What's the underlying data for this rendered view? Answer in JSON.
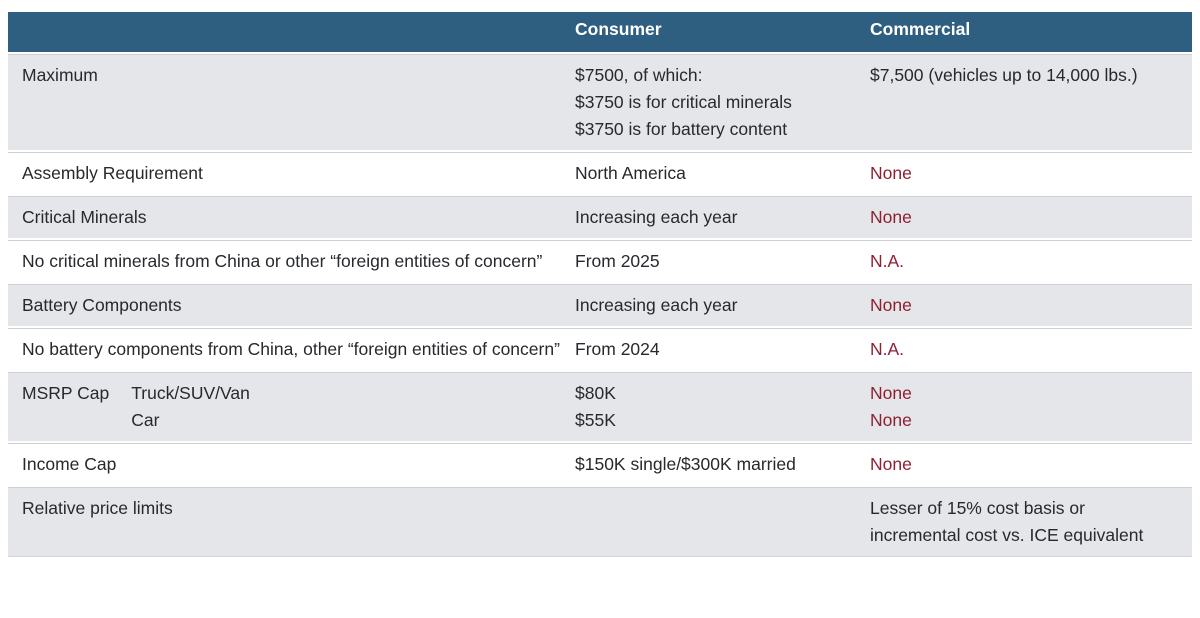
{
  "colors": {
    "header_bg": "#2e5e80",
    "header_text": "#ffffff",
    "stripe_bg": "#e4e6e9",
    "body_text": "#26292d",
    "negative_text": "#8e2033"
  },
  "header": {
    "col1": "",
    "consumer": "Consumer",
    "commercial": "Commercial"
  },
  "rows": [
    {
      "label": "Maximum",
      "consumer": [
        "$7500, of which:",
        "$3750 is for critical minerals",
        "$3750 is for battery content"
      ],
      "commercial": [
        "$7,500 (vehicles up to 14,000 lbs.)"
      ]
    },
    {
      "label": "Assembly Requirement",
      "consumer": [
        "North America"
      ],
      "commercial": [
        "None"
      ]
    },
    {
      "label": "Critical Minerals",
      "consumer": [
        "Increasing each year"
      ],
      "commercial": [
        "None"
      ]
    },
    {
      "label": "No critical minerals from China or other “foreign entities of concern”",
      "consumer": [
        "From 2025"
      ],
      "commercial": [
        "N.A."
      ]
    },
    {
      "label": "Battery Components",
      "consumer": [
        "Increasing each year"
      ],
      "commercial": [
        "None"
      ]
    },
    {
      "label": "No battery components from China, other “foreign entities of concern”",
      "consumer": [
        "From 2024"
      ],
      "commercial": [
        "N.A."
      ]
    },
    {
      "label": "MSRP Cap",
      "sublabels": [
        "Truck/SUV/Van",
        "Car"
      ],
      "consumer": [
        "$80K",
        "$55K"
      ],
      "commercial": [
        "None",
        "None"
      ]
    },
    {
      "label": "Income Cap",
      "consumer": [
        "$150K single/$300K married"
      ],
      "commercial": [
        "None"
      ]
    },
    {
      "label": "Relative price limits",
      "consumer": [],
      "commercial": [
        "Lesser of 15% cost basis or",
        "incremental cost vs. ICE equivalent"
      ]
    }
  ],
  "chart_data": {
    "type": "table",
    "columns": [
      "",
      "Consumer",
      "Commercial"
    ],
    "rows": [
      [
        "Maximum",
        "$7500, of which: $3750 is for critical minerals / $3750 is for battery content",
        "$7,500 (vehicles up to 14,000 lbs.)"
      ],
      [
        "Assembly Requirement",
        "North America",
        "None"
      ],
      [
        "Critical Minerals",
        "Increasing each year",
        "None"
      ],
      [
        "No critical minerals from China or other “foreign entities of concern”",
        "From 2025",
        "N.A."
      ],
      [
        "Battery Components",
        "Increasing each year",
        "None"
      ],
      [
        "No battery components from China, other “foreign entities of concern”",
        "From 2024",
        "N.A."
      ],
      [
        "MSRP Cap — Truck/SUV/Van; Car",
        "$80K; $55K",
        "None; None"
      ],
      [
        "Income Cap",
        "$150K single/$300K married",
        "None"
      ],
      [
        "Relative price limits",
        "",
        "Lesser of 15% cost basis or incremental cost vs. ICE equivalent"
      ]
    ],
    "layout": {
      "header_background": "#2e5e80",
      "row_striping": "alternating gray/white starting gray",
      "negative_values_color": "#8e2033"
    }
  }
}
